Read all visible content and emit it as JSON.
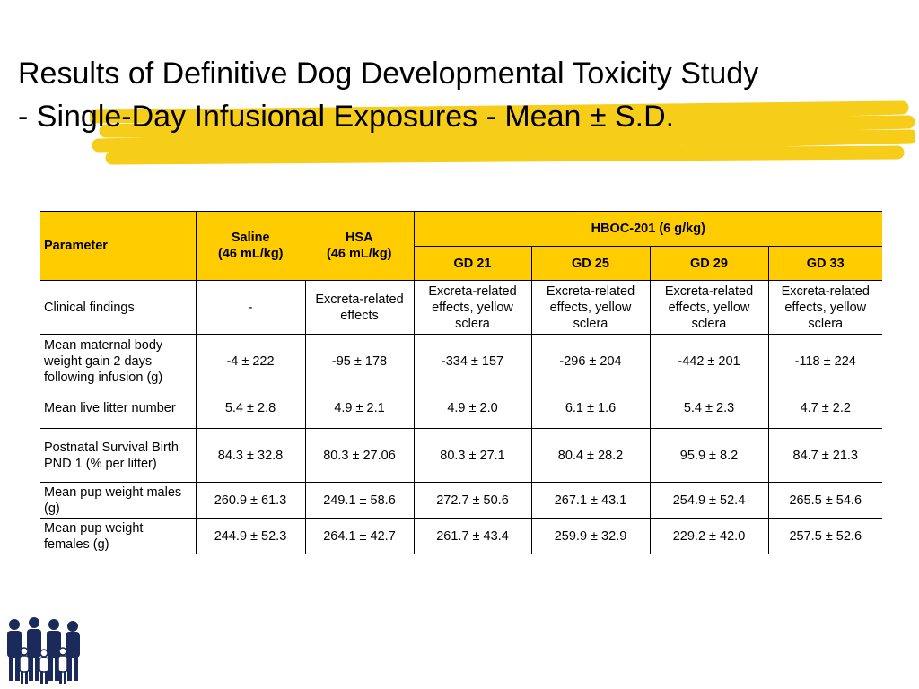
{
  "slide": {
    "title_line1": "Results of Definitive Dog Developmental Toxicity Study",
    "title_line2": "- Single-Day Infusional Exposures - Mean ± S.D."
  },
  "table": {
    "header": {
      "parameter": "Parameter",
      "saline_line1": "Saline",
      "saline_line2": "(46 mL/kg)",
      "hsa_line1": "HSA",
      "hsa_line2": "(46 mL/kg)",
      "hboc_group": "HBOC-201 (6 g/kg)",
      "gd21": "GD 21",
      "gd25": "GD 25",
      "gd29": "GD 29",
      "gd33": "GD 33"
    },
    "rows": [
      {
        "param": "Clinical findings",
        "saline": "-",
        "hsa": "Excreta-related effects",
        "gd21": "Excreta-related effects, yellow sclera",
        "gd25": "Excreta-related effects, yellow sclera",
        "gd29": "Excreta-related effects, yellow sclera",
        "gd33": "Excreta-related effects, yellow sclera"
      },
      {
        "param": "Mean maternal body weight gain 2 days following infusion (g)",
        "saline": "-4 ± 222",
        "hsa": "-95 ± 178",
        "gd21": "-334 ± 157",
        "gd25": "-296 ± 204",
        "gd29": "-442 ± 201",
        "gd33": "-118 ± 224"
      },
      {
        "param": "Mean live litter number",
        "saline": "5.4 ± 2.8",
        "hsa": "4.9 ± 2.1",
        "gd21": "4.9 ± 2.0",
        "gd25": "6.1 ± 1.6",
        "gd29": "5.4 ± 2.3",
        "gd33": "4.7 ± 2.2"
      },
      {
        "param": "Postnatal Survival Birth PND 1 (% per litter)",
        "saline": "84.3 ± 32.8",
        "hsa": "80.3 ± 27.06",
        "gd21": "80.3 ± 27.1",
        "gd25": "80.4 ± 28.2",
        "gd29": "95.9 ± 8.2",
        "gd33": "84.7 ± 21.3"
      },
      {
        "param": "Mean pup weight males (g)",
        "saline": "260.9 ± 61.3",
        "hsa": "249.1 ± 58.6",
        "gd21": "272.7 ± 50.6",
        "gd25": "267.1 ± 43.1",
        "gd29": "254.9 ± 52.4",
        "gd33": "265.5 ± 54.6"
      },
      {
        "param": "Mean pup weight females (g)",
        "saline": "244.9 ± 52.3",
        "hsa": "264.1 ± 42.7",
        "gd21": "261.7 ± 43.4",
        "gd25": "259.9 ± 32.9",
        "gd29": "229.2 ± 42.0",
        "gd33": "257.5 ± 52.6"
      }
    ]
  },
  "colors": {
    "header_fill": "#ffcc00",
    "title_highlight": "#f5c800"
  },
  "logo": {
    "icon": "family-figures-icon"
  }
}
